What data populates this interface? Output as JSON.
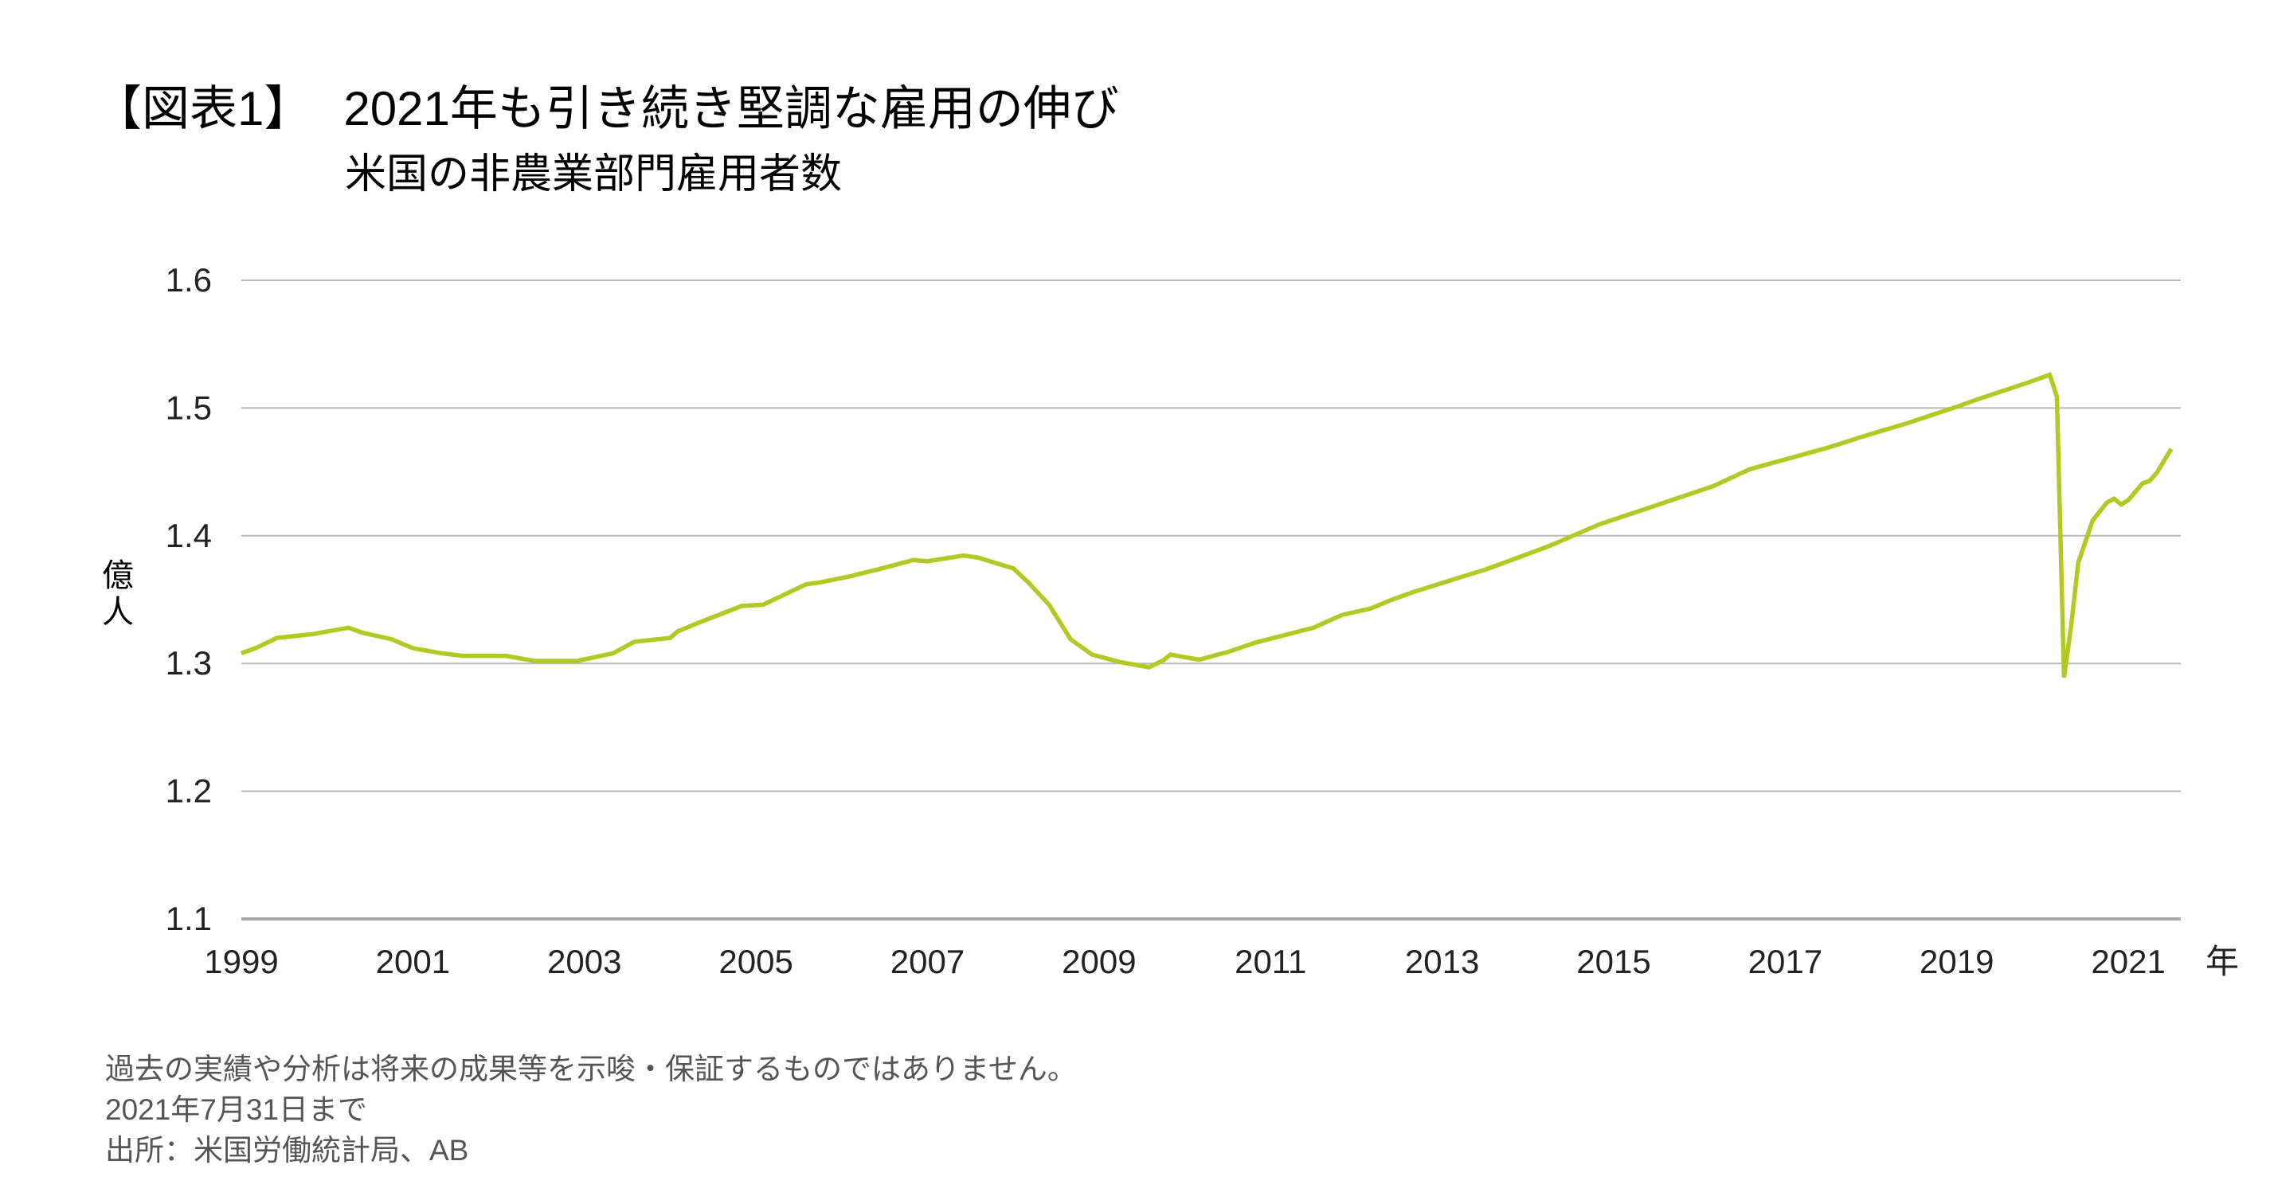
{
  "header": {
    "figure_label": "【図表1】",
    "title": "2021年も引き続き堅調な雇用の伸び",
    "subtitle": "米国の非農業部門雇用者数"
  },
  "chart_data": {
    "type": "line",
    "title": "2021年も引き続き堅調な雇用の伸び",
    "subtitle": "米国の非農業部門雇用者数",
    "ylabel": "億人",
    "xlabel": "年",
    "ylim": [
      1.1,
      1.6
    ],
    "yticks": [
      "1.1",
      "1.2",
      "1.3",
      "1.4",
      "1.5",
      "1.6"
    ],
    "xlim": [
      "1999-01",
      "2021-07"
    ],
    "xticks": [
      "1999",
      "2001",
      "2003",
      "2005",
      "2007",
      "2009",
      "2011",
      "2013",
      "2015",
      "2017",
      "2019",
      "2021"
    ],
    "grid": true,
    "legend": "none",
    "color": "#b3c822",
    "series": [
      {
        "x": [
          "1999-01",
          "1999-03",
          "1999-06",
          "1999-11",
          "2000-04",
          "2000-06",
          "2000-10",
          "2001-01",
          "2001-05",
          "2001-08",
          "2002-02",
          "2002-06",
          "2002-12",
          "2003-05",
          "2003-08",
          "2004-01",
          "2004-02",
          "2004-05",
          "2004-11",
          "2005-02",
          "2005-08",
          "2005-10",
          "2006-02",
          "2006-07",
          "2006-11",
          "2007-01",
          "2007-06",
          "2007-08",
          "2008-01",
          "2008-03",
          "2008-06",
          "2008-09",
          "2008-12",
          "2009-04",
          "2009-08",
          "2009-10",
          "2009-11",
          "2010-03",
          "2010-07",
          "2010-11",
          "2011-07",
          "2011-11",
          "2012-03",
          "2012-06",
          "2012-09",
          "2013-05",
          "2013-07",
          "2014-04",
          "2014-11",
          "2015-06",
          "2016-03",
          "2016-08",
          "2017-07",
          "2017-12",
          "2018-06",
          "2019-01",
          "2019-04",
          "2019-11",
          "2020-02",
          "2020-03",
          "2020-04",
          "2020-05",
          "2020-06",
          "2020-08",
          "2020-10",
          "2020-11",
          "2020-12",
          "2021-01",
          "2021-03",
          "2021-04",
          "2021-05",
          "2021-07"
        ],
        "values": [
          1.308,
          1.312,
          1.32,
          1.323,
          1.328,
          1.324,
          1.319,
          1.312,
          1.308,
          1.306,
          1.306,
          1.302,
          1.302,
          1.308,
          1.317,
          1.32,
          1.325,
          1.332,
          1.345,
          1.346,
          1.362,
          1.3635,
          1.368,
          1.375,
          1.381,
          1.38,
          1.3845,
          1.383,
          1.3745,
          1.364,
          1.346,
          1.319,
          1.307,
          1.301,
          1.297,
          1.3025,
          1.307,
          1.303,
          1.309,
          1.3165,
          1.328,
          1.338,
          1.343,
          1.35,
          1.356,
          1.37,
          1.3734,
          1.392,
          1.409,
          1.422,
          1.439,
          1.452,
          1.469,
          1.478,
          1.488,
          1.501,
          1.507,
          1.52,
          1.526,
          1.509,
          1.289,
          1.33,
          1.379,
          1.412,
          1.426,
          1.429,
          1.4245,
          1.428,
          1.441,
          1.443,
          1.4495,
          1.468
        ]
      }
    ]
  },
  "footnotes": {
    "disclaimer": "過去の実績や分析は将来の成果等を示唆・保証するものではありません。",
    "as_of": "2021年7月31日まで",
    "source": "出所：米国労働統計局、AB"
  }
}
